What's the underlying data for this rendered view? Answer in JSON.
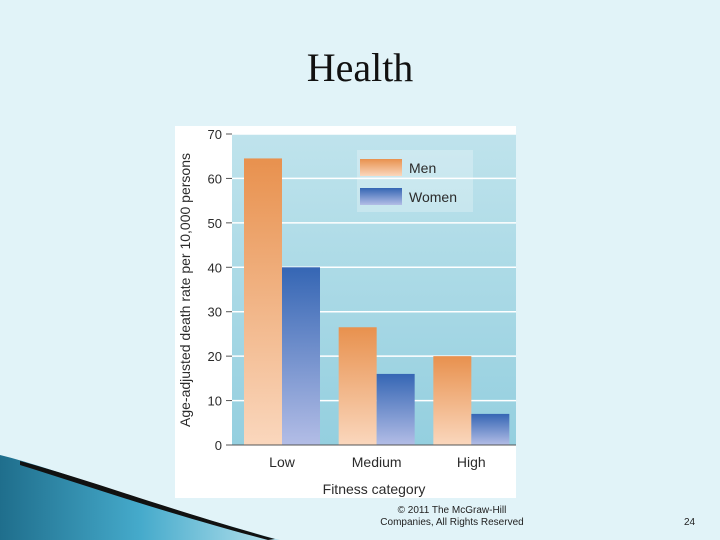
{
  "slide": {
    "title": "Health",
    "copyright_line1": "© 2011 The McGraw-Hill",
    "copyright_line2": "Companies, All Rights Reserved",
    "page_number": "24"
  },
  "colors": {
    "background": "#e1f3f8",
    "plot_background": "#a9d8e4",
    "men": "#e8914e",
    "women": "#3566b4"
  },
  "chart_data": {
    "type": "bar",
    "categories": [
      "Low",
      "Medium",
      "High"
    ],
    "series": [
      {
        "name": "Men",
        "values": [
          64.5,
          26.5,
          20
        ]
      },
      {
        "name": "Women",
        "values": [
          40,
          16,
          7
        ]
      }
    ],
    "title": "",
    "xlabel": "Fitness category",
    "ylabel": "Age-adjusted death rate per 10,000 persons",
    "ylim": [
      0,
      70
    ],
    "yticks": [
      0,
      10,
      20,
      30,
      40,
      50,
      60,
      70
    ],
    "grid": true,
    "legend": "top-right"
  }
}
